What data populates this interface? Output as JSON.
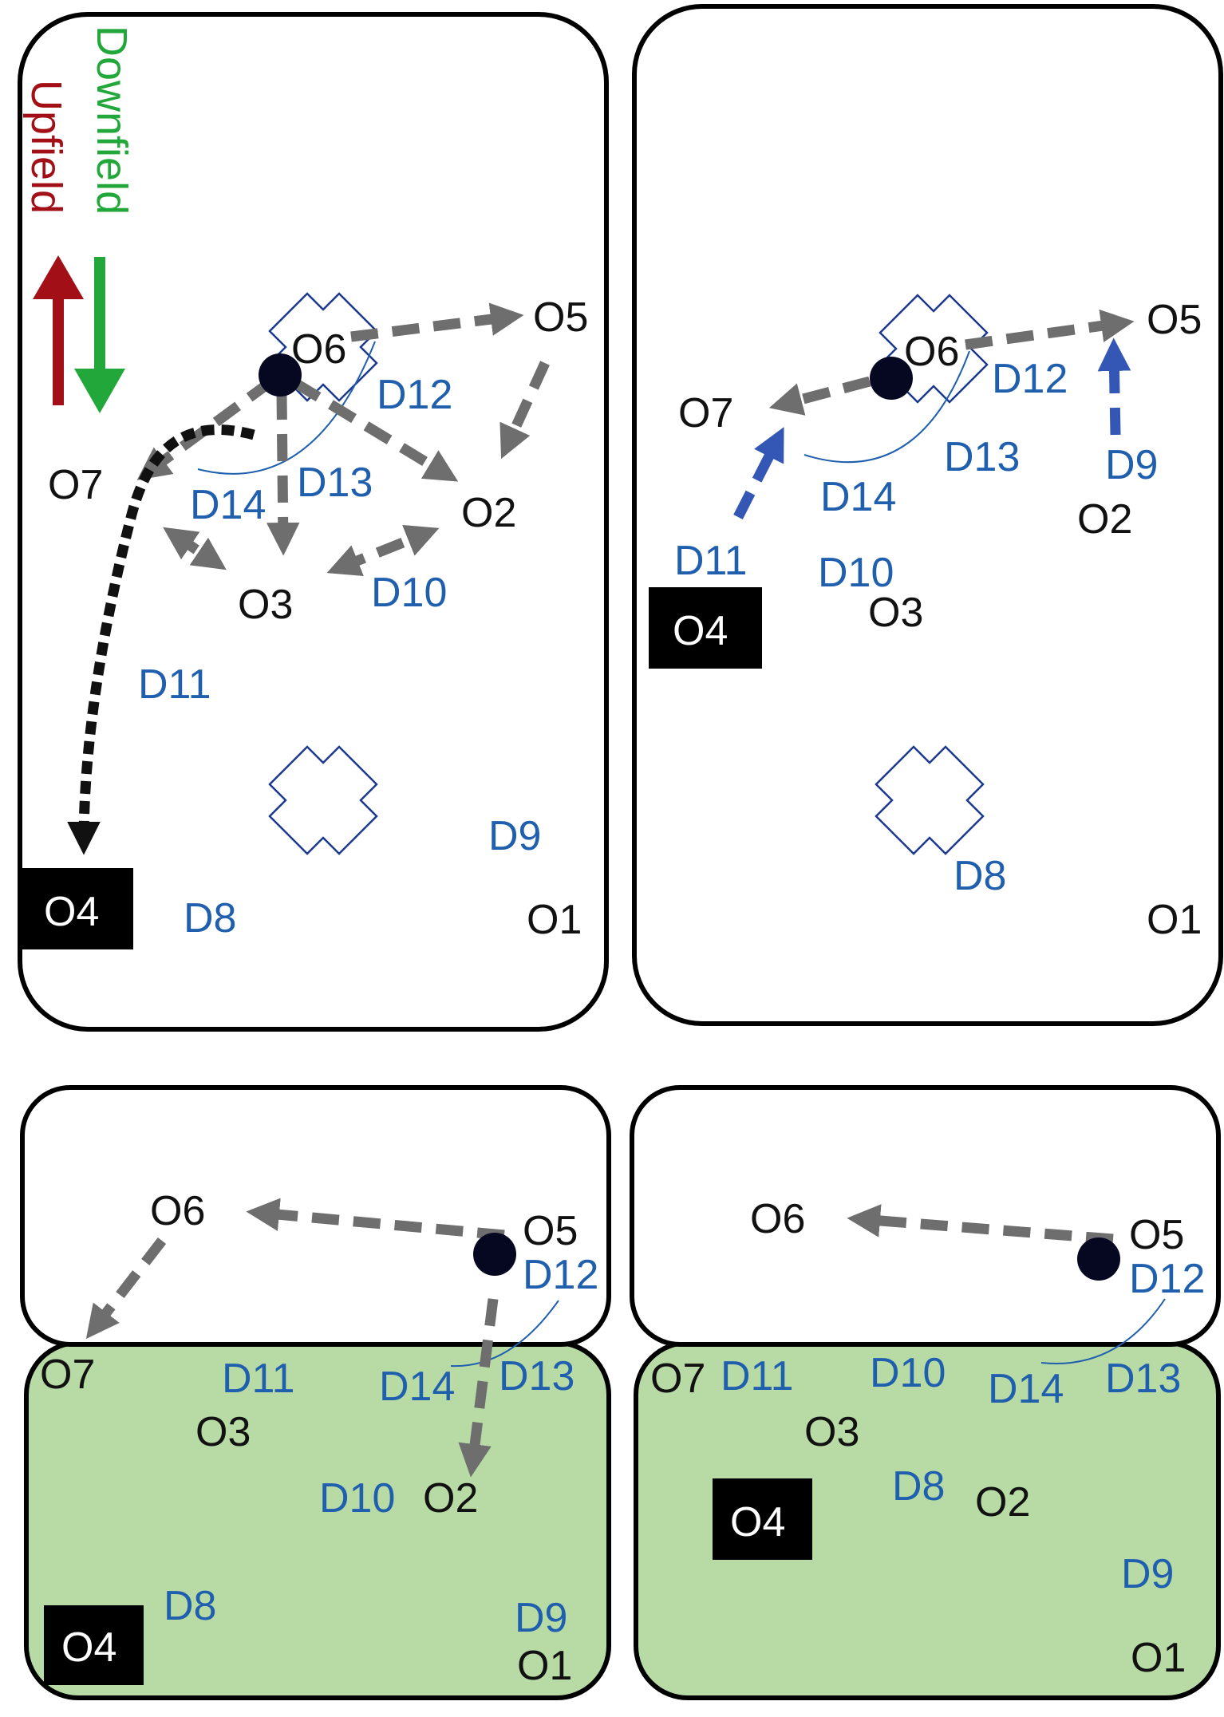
{
  "legend": {
    "upfield_label": "Upfield",
    "downfield_label": "Downfield",
    "upfield_color": "#a30f16",
    "downfield_color": "#22a83a"
  },
  "colors": {
    "pass_arrow": "#6e6e6e",
    "cut_arrow": "#111111",
    "defender_move_arrow": "#3457b6",
    "offense_text": "#111111",
    "defense_text": "#1f5fae",
    "endzone_fill": "#b8dba6",
    "disc": "#050820",
    "cone_outline": "#1c3a8c",
    "highlight_box": "#000000",
    "highlight_text": "#ffffff"
  },
  "panels": {
    "top_left": {
      "offense": [
        "O7",
        "O6",
        "O5",
        "O2",
        "O3",
        "O1"
      ],
      "highlight": "O4",
      "defense": [
        "D12",
        "D14",
        "D13",
        "D10",
        "D11",
        "D9",
        "D8"
      ]
    },
    "top_right": {
      "offense": [
        "O6",
        "O5",
        "O7",
        "O2",
        "O3",
        "O1"
      ],
      "highlight": "O4",
      "defense": [
        "D12",
        "D13",
        "D9",
        "D14",
        "D11",
        "D10",
        "D8"
      ]
    },
    "bottom_left": {
      "offense": [
        "O6",
        "O5",
        "O7",
        "O3",
        "O2",
        "O1"
      ],
      "highlight": "O4",
      "defense": [
        "D12",
        "D11",
        "D14",
        "D13",
        "D10",
        "D8",
        "D9"
      ]
    },
    "bottom_right": {
      "offense": [
        "O6",
        "O5",
        "O7",
        "O3",
        "O2",
        "O1"
      ],
      "highlight": "O4",
      "defense": [
        "D12",
        "D11",
        "D10",
        "D14",
        "D13",
        "D8",
        "D9"
      ]
    }
  }
}
